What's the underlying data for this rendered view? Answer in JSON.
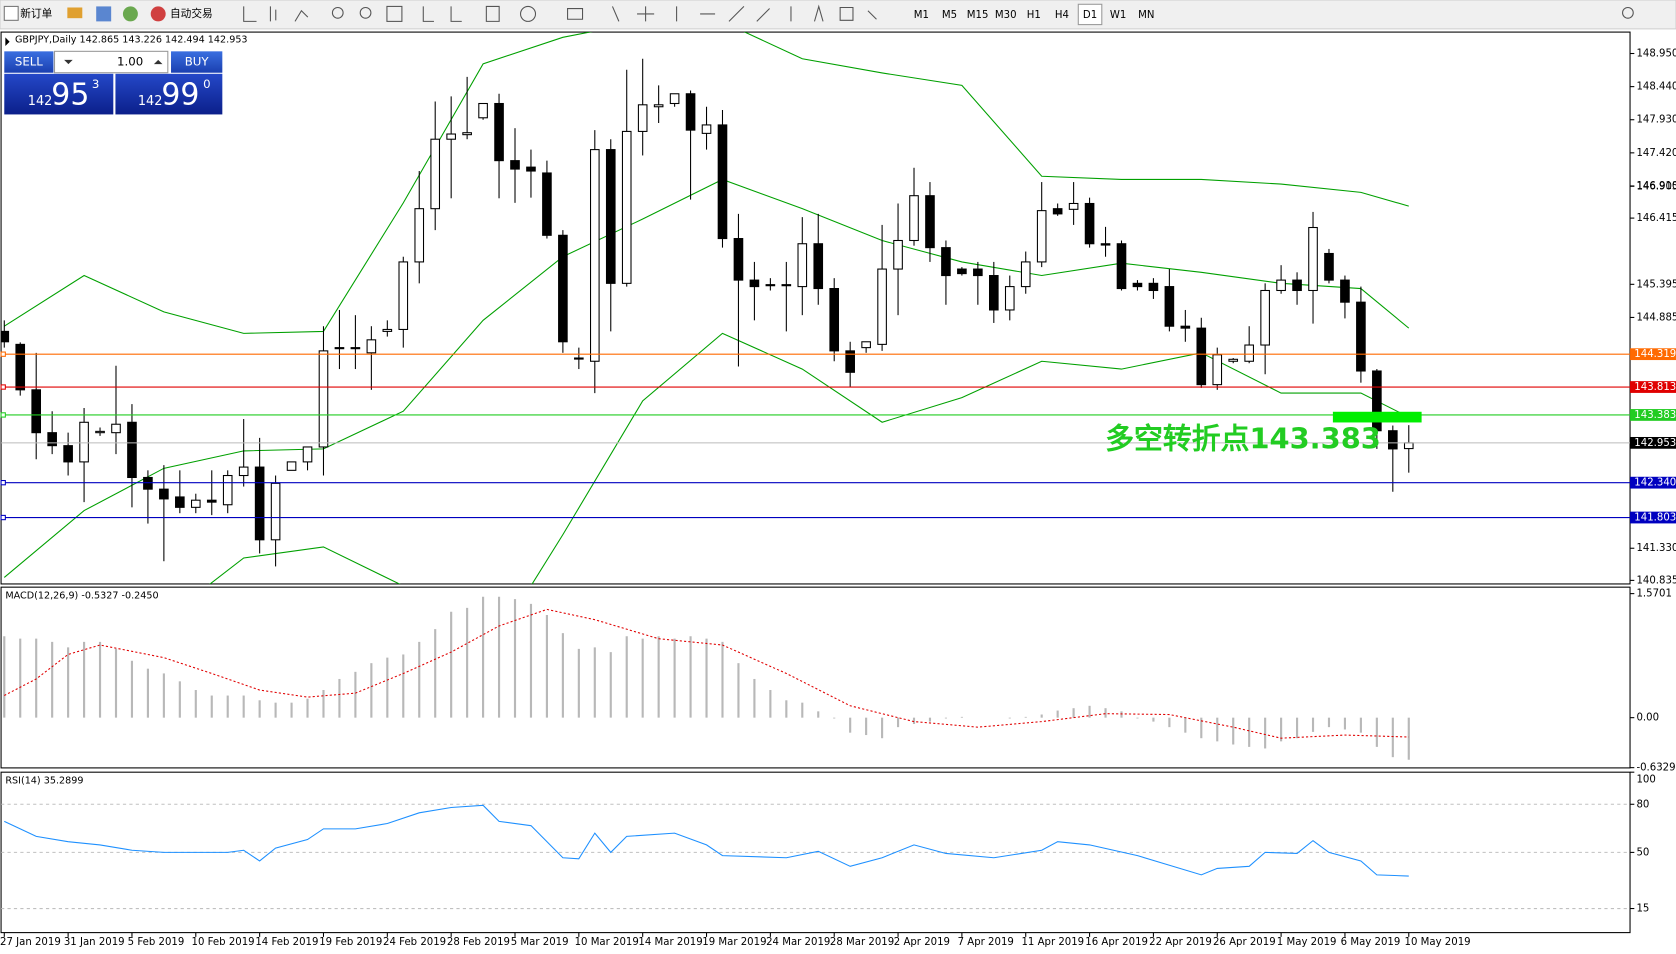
{
  "toolbar": {
    "new_order": "新订单",
    "auto_trading": "自动交易",
    "timeframes": [
      "M1",
      "M5",
      "M15",
      "M30",
      "H1",
      "H4",
      "D1",
      "W1",
      "MN"
    ],
    "active_timeframe": "D1"
  },
  "trade_panel": {
    "sell": "SELL",
    "lot": "1.00",
    "buy": "BUY",
    "bid": {
      "big": "142",
      "main": "95",
      "small": "3"
    },
    "ask": {
      "big": "142",
      "main": "99",
      "small": "0"
    }
  },
  "chart_data": {
    "type": "candlestick",
    "header": "GBPJPY,Daily  142.865 143.226 142.494 142.953",
    "categories": [
      "27 Jan 2019",
      null,
      null,
      null,
      "31 Jan 2019",
      null,
      null,
      null,
      "5 Feb 2019",
      null,
      null,
      null,
      "10 Feb 2019",
      null,
      null,
      null,
      "14 Feb 2019",
      null,
      null,
      null,
      "19 Feb 2019",
      null,
      null,
      null,
      "24 Feb 2019",
      null,
      null,
      null,
      "28 Feb 2019",
      null,
      null,
      null,
      "5 Mar 2019",
      null,
      null,
      null,
      "10 Mar 2019",
      null,
      null,
      null,
      "14 Mar 2019",
      null,
      null,
      null,
      "19 Mar 2019",
      null,
      null,
      null,
      "24 Mar 2019",
      null,
      null,
      null,
      "28 Mar 2019",
      null,
      null,
      null,
      "2 Apr 2019",
      null,
      null,
      null,
      "7 Apr 2019",
      null,
      null,
      null,
      "11 Apr 2019",
      null,
      null,
      null,
      "16 Apr 2019",
      null,
      null,
      null,
      "22 Apr 2019",
      null,
      null,
      null,
      "26 Apr 2019",
      null,
      null,
      null,
      "1 May 2019",
      null,
      null,
      null,
      "6 May 2019",
      null,
      null,
      null,
      "10 May 2019"
    ],
    "candles": [
      [
        144.67,
        144.84,
        144.42,
        144.51
      ],
      [
        144.47,
        144.5,
        143.68,
        143.77
      ],
      [
        143.77,
        144.34,
        142.7,
        143.11
      ],
      [
        143.11,
        143.44,
        142.78,
        142.91
      ],
      [
        142.91,
        143.11,
        142.45,
        142.66
      ],
      [
        142.66,
        143.49,
        142.04,
        143.27
      ],
      [
        143.11,
        143.19,
        143.06,
        143.13
      ],
      [
        143.11,
        144.14,
        142.78,
        143.24
      ],
      [
        143.27,
        143.55,
        141.96,
        142.42
      ],
      [
        142.42,
        142.53,
        141.71,
        142.24
      ],
      [
        142.24,
        142.61,
        141.13,
        142.09
      ],
      [
        142.12,
        142.53,
        141.87,
        141.96
      ],
      [
        141.96,
        142.17,
        141.87,
        142.07
      ],
      [
        142.07,
        142.53,
        141.84,
        142.04
      ],
      [
        142.0,
        142.53,
        141.87,
        142.45
      ],
      [
        142.45,
        143.32,
        142.28,
        142.58
      ],
      [
        142.58,
        143.03,
        141.25,
        141.46
      ],
      [
        141.46,
        142.45,
        141.05,
        142.33
      ],
      [
        142.53,
        142.66,
        142.53,
        142.66
      ],
      [
        142.66,
        142.89,
        142.53,
        142.89
      ],
      [
        142.89,
        144.75,
        142.45,
        144.37
      ],
      [
        144.42,
        145.0,
        144.09,
        144.42
      ],
      [
        144.41,
        144.92,
        144.09,
        144.42
      ],
      [
        144.34,
        144.75,
        143.77,
        144.54
      ],
      [
        144.67,
        144.84,
        144.59,
        144.7
      ],
      [
        144.7,
        145.82,
        144.42,
        145.74
      ],
      [
        145.74,
        147.14,
        145.41,
        146.56
      ],
      [
        146.56,
        148.21,
        146.23,
        147.63
      ],
      [
        147.63,
        148.29,
        146.72,
        147.71
      ],
      [
        147.7,
        148.59,
        147.63,
        147.73
      ],
      [
        147.96,
        148.18,
        147.93,
        148.18
      ],
      [
        148.18,
        148.33,
        146.72,
        147.3
      ],
      [
        147.3,
        147.8,
        146.65,
        147.17
      ],
      [
        147.2,
        147.47,
        146.73,
        147.14
      ],
      [
        147.11,
        147.3,
        146.1,
        146.15
      ],
      [
        146.15,
        146.23,
        144.34,
        144.51
      ],
      [
        144.26,
        144.42,
        144.09,
        144.26
      ],
      [
        144.21,
        147.77,
        143.72,
        147.47
      ],
      [
        147.47,
        147.63,
        144.67,
        145.41
      ],
      [
        145.41,
        148.7,
        145.36,
        147.75
      ],
      [
        147.75,
        148.87,
        147.38,
        148.16
      ],
      [
        148.13,
        148.46,
        147.88,
        148.16
      ],
      [
        148.18,
        148.33,
        148.13,
        148.33
      ],
      [
        148.33,
        148.38,
        146.7,
        147.77
      ],
      [
        147.72,
        148.13,
        147.47,
        147.85
      ],
      [
        147.85,
        148.08,
        145.96,
        146.1
      ],
      [
        146.1,
        146.48,
        144.13,
        145.46
      ],
      [
        145.46,
        145.74,
        144.84,
        145.36
      ],
      [
        145.39,
        145.49,
        145.3,
        145.39
      ],
      [
        145.39,
        145.74,
        144.67,
        145.38
      ],
      [
        145.36,
        146.43,
        144.92,
        146.02
      ],
      [
        146.02,
        146.48,
        145.08,
        145.33
      ],
      [
        145.33,
        145.49,
        144.21,
        144.37
      ],
      [
        144.37,
        144.51,
        143.82,
        144.04
      ],
      [
        144.42,
        144.51,
        144.34,
        144.51
      ],
      [
        144.47,
        146.31,
        144.37,
        145.63
      ],
      [
        145.63,
        146.64,
        144.92,
        146.07
      ],
      [
        146.07,
        147.19,
        145.99,
        146.76
      ],
      [
        146.76,
        146.97,
        145.74,
        145.96
      ],
      [
        145.96,
        146.07,
        145.08,
        145.53
      ],
      [
        145.63,
        145.66,
        145.53,
        145.56
      ],
      [
        145.63,
        145.74,
        145.08,
        145.53
      ],
      [
        145.53,
        145.74,
        144.8,
        145.0
      ],
      [
        145.0,
        145.53,
        144.84,
        145.36
      ],
      [
        145.36,
        145.9,
        145.25,
        145.74
      ],
      [
        145.74,
        146.97,
        145.66,
        146.53
      ],
      [
        146.56,
        146.64,
        146.45,
        146.48
      ],
      [
        146.55,
        146.97,
        146.31,
        146.64
      ],
      [
        146.64,
        146.73,
        145.96,
        146.02
      ],
      [
        146.02,
        146.28,
        145.82,
        146.0
      ],
      [
        146.02,
        146.07,
        145.3,
        145.33
      ],
      [
        145.41,
        145.46,
        145.3,
        145.36
      ],
      [
        145.41,
        145.49,
        145.17,
        145.3
      ],
      [
        145.36,
        145.63,
        144.67,
        144.75
      ],
      [
        144.75,
        145.0,
        144.51,
        144.72
      ],
      [
        144.72,
        144.88,
        143.8,
        143.85
      ],
      [
        143.85,
        144.42,
        143.77,
        144.31
      ],
      [
        144.21,
        144.26,
        144.18,
        144.24
      ],
      [
        144.21,
        144.75,
        144.18,
        144.46
      ],
      [
        144.46,
        145.41,
        144.01,
        145.3
      ],
      [
        145.3,
        145.69,
        145.25,
        145.46
      ],
      [
        145.46,
        145.58,
        145.08,
        145.3
      ],
      [
        145.3,
        146.51,
        144.79,
        146.27
      ],
      [
        145.87,
        145.94,
        145.41,
        145.46
      ],
      [
        145.46,
        145.53,
        144.87,
        145.12
      ],
      [
        145.12,
        145.36,
        143.88,
        144.06
      ],
      [
        144.06,
        144.09,
        142.86,
        143.14
      ],
      [
        143.14,
        143.22,
        142.2,
        142.86
      ],
      [
        142.865,
        143.226,
        142.494,
        142.953
      ]
    ],
    "ylim": [
      140.78,
      149.28
    ],
    "yticks": [
      {
        "value": 148.95,
        "label": "148.950"
      },
      {
        "value": 148.44,
        "label": "148.440"
      },
      {
        "value": 147.93,
        "label": "147.930"
      },
      {
        "value": 147.42,
        "label": "147.420"
      },
      {
        "value": 146.91,
        "label": "146.910"
      },
      146.415,
      146.905,
      145.395,
      144.885,
      {
        "value": 141.33,
        "label": "141.330"
      },
      140.835
    ],
    "bollinger": {
      "color": "#00a000",
      "x": [
        0,
        5,
        10,
        15,
        20,
        25,
        30,
        35,
        40,
        45,
        50,
        55,
        60,
        65,
        70,
        75,
        80,
        85,
        88
      ],
      "upper": [
        144.75,
        145.53,
        144.97,
        144.64,
        144.67,
        146.65,
        148.79,
        149.2,
        149.44,
        149.44,
        148.87,
        148.65,
        148.46,
        147.06,
        147.01,
        147.01,
        146.94,
        146.81,
        146.6
      ],
      "middle": [
        140.88,
        141.91,
        142.56,
        142.83,
        142.86,
        143.44,
        144.84,
        145.82,
        146.4,
        147.01,
        146.56,
        146.07,
        145.74,
        145.53,
        145.72,
        145.58,
        145.41,
        145.33,
        144.72
      ],
      "lower": [
        139.9,
        139.57,
        140.23,
        141.18,
        141.35,
        140.75,
        139.57,
        141.54,
        143.6,
        144.64,
        144.09,
        143.27,
        143.65,
        144.21,
        144.09,
        144.34,
        143.72,
        143.72,
        143.35
      ]
    },
    "levels": [
      {
        "value": 144.319,
        "label": "144.319",
        "color": "#ff6a00"
      },
      {
        "value": 143.813,
        "label": "143.813",
        "color": "#e00000"
      },
      {
        "value": 143.383,
        "label": "143.383",
        "color": "#22cc22"
      },
      {
        "value": 142.34,
        "label": "142.340",
        "color": "#0000c0"
      },
      {
        "value": 141.803,
        "label": "141.803",
        "color": "#0000c0"
      }
    ],
    "last_price": 142.953,
    "annotation": "多空转折点143.383",
    "macd": {
      "label": "MACD(12,26,9) -0.5327 -0.2450",
      "ylim": [
        -0.636,
        1.652
      ],
      "yticks": [
        1.5701,
        {
          "value": 0,
          "label": "0.00"
        },
        -0.6329
      ],
      "histogram": [
        1.03,
        1.0,
        1.0,
        0.96,
        0.89,
        0.96,
        0.96,
        0.87,
        0.72,
        0.62,
        0.56,
        0.46,
        0.35,
        0.28,
        0.28,
        0.28,
        0.22,
        0.19,
        0.19,
        0.24,
        0.35,
        0.49,
        0.58,
        0.69,
        0.76,
        0.8,
        0.96,
        1.12,
        1.34,
        1.39,
        1.53,
        1.53,
        1.5,
        1.44,
        1.3,
        1.07,
        0.87,
        0.89,
        0.83,
        1.03,
        1.0,
        1.03,
        1.0,
        1.03,
        1.0,
        0.96,
        0.69,
        0.49,
        0.35,
        0.22,
        0.19,
        0.08,
        -0.01,
        -0.19,
        -0.22,
        -0.26,
        -0.12,
        -0.08,
        -0.05,
        -0.01,
        0.01,
        0,
        0,
        -0.01,
        0.01,
        0.04,
        0.09,
        0.12,
        0.15,
        0.12,
        0.08,
        -0.01,
        -0.05,
        -0.12,
        -0.19,
        -0.26,
        -0.3,
        -0.34,
        -0.37,
        -0.39,
        -0.3,
        -0.26,
        -0.18,
        -0.12,
        -0.15,
        -0.19,
        -0.37,
        -0.5,
        -0.5327
      ],
      "signal_x": [
        0,
        2,
        4,
        6,
        10,
        13,
        16,
        19,
        22,
        25,
        28,
        31,
        34,
        37,
        41,
        45,
        49,
        53,
        57,
        61,
        65,
        69,
        73,
        77,
        80,
        84,
        88
      ],
      "signal": [
        0.28,
        0.49,
        0.8,
        0.92,
        0.76,
        0.56,
        0.35,
        0.26,
        0.31,
        0.56,
        0.83,
        1.16,
        1.37,
        1.24,
        1.0,
        0.92,
        0.56,
        0.15,
        -0.05,
        -0.12,
        -0.05,
        0.05,
        0.04,
        -0.12,
        -0.26,
        -0.22,
        -0.245
      ]
    },
    "rsi": {
      "label": "RSI(14) 35.2899",
      "ylim": [
        0,
        100
      ],
      "yticks": [
        100,
        80,
        50,
        15
      ],
      "levels": [
        80,
        50,
        15
      ],
      "x": [
        0,
        2,
        4,
        6,
        8,
        10,
        12,
        14,
        15,
        16,
        17,
        19,
        20,
        22,
        24,
        26,
        28,
        30,
        31,
        33,
        35,
        36,
        37,
        38,
        39,
        42,
        44,
        45,
        49,
        51,
        53,
        55,
        57,
        59,
        62,
        65,
        66,
        68,
        71,
        75,
        76,
        78,
        79,
        81,
        82,
        83,
        85,
        86,
        88
      ],
      "values": [
        69.3,
        60,
        56.7,
        54.7,
        51.3,
        50,
        50,
        50,
        51.3,
        44.7,
        52.7,
        58,
        64.7,
        64.7,
        68,
        74.7,
        78,
        79.3,
        69.3,
        66.7,
        46.7,
        46,
        62,
        50,
        60,
        62,
        54.7,
        48,
        46.7,
        50.7,
        41.3,
        46.7,
        54.7,
        49.3,
        46.7,
        51.3,
        56.7,
        54.7,
        48,
        36,
        40,
        41.3,
        50,
        49.3,
        57.3,
        50,
        44.7,
        36,
        35.2899
      ]
    }
  }
}
